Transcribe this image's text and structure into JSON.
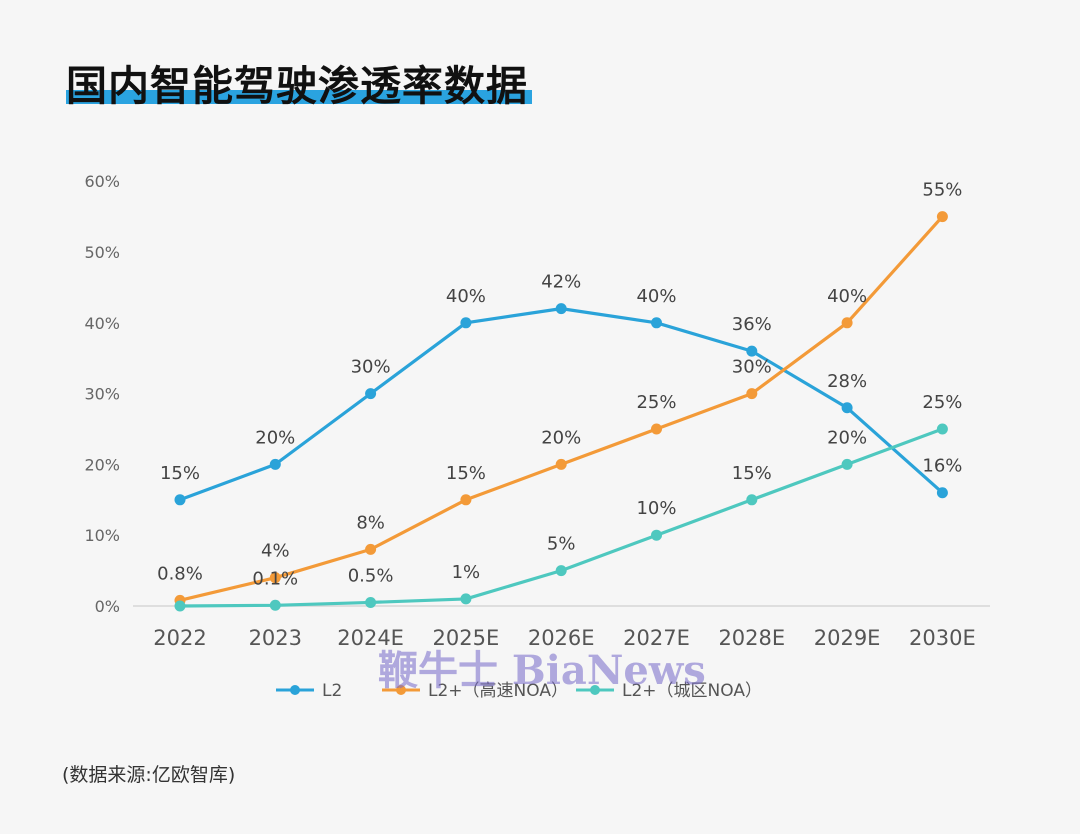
{
  "title": "国内智能驾驶渗透率数据",
  "source": "(数据来源:亿欧智库)",
  "watermark": "鞭牛士 BiaNews",
  "colors": {
    "accent": "#2aa3e0"
  },
  "chart_data": {
    "type": "line",
    "categories": [
      "2022",
      "2023",
      "2024E",
      "2025E",
      "2026E",
      "2027E",
      "2028E",
      "2029E",
      "2030E"
    ],
    "y_ticks": [
      "0%",
      "10%",
      "20%",
      "30%",
      "40%",
      "50%",
      "60%"
    ],
    "ylim": [
      0,
      60
    ],
    "grid": false,
    "legend_position": "bottom",
    "series": [
      {
        "name": "L2",
        "color": "#2aa3d9",
        "values": [
          15,
          20,
          30,
          40,
          42,
          40,
          36,
          28,
          16
        ],
        "labels": [
          "15%",
          "20%",
          "30%",
          "40%",
          "42%",
          "40%",
          "36%",
          "28%",
          "16%"
        ]
      },
      {
        "name": "L2+（高速NOA）",
        "color": "#f39a38",
        "values": [
          0.8,
          4,
          8,
          15,
          20,
          25,
          30,
          40,
          55
        ],
        "labels": [
          "0.8%",
          "4%",
          "8%",
          "15%",
          "20%",
          "25%",
          "30%",
          "40%",
          "55%"
        ]
      },
      {
        "name": "L2+（城区NOA）",
        "color": "#4ec8bf",
        "values": [
          0,
          0.1,
          0.5,
          1,
          5,
          10,
          15,
          20,
          25
        ],
        "labels": [
          "",
          "0.1%",
          "0.5%",
          "1%",
          "5%",
          "10%",
          "15%",
          "20%",
          "25%"
        ]
      }
    ]
  }
}
